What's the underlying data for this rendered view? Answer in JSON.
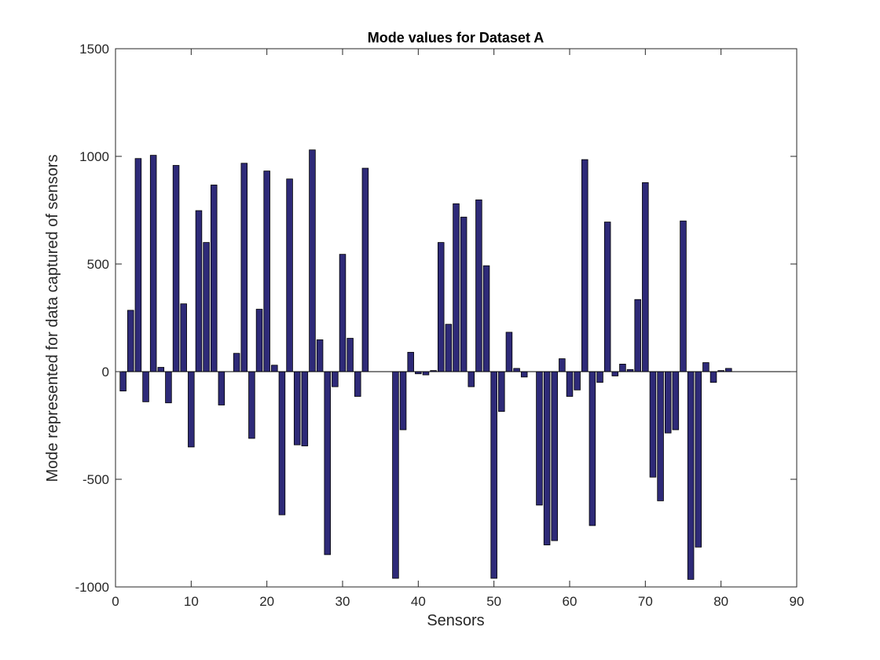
{
  "chart_data": {
    "type": "bar",
    "title": "Mode values for Dataset A",
    "xlabel": "Sensors",
    "ylabel": "Mode represented for data captured of sensors",
    "xlim": [
      0,
      90
    ],
    "ylim": [
      -1000,
      1500
    ],
    "xticks": [
      0,
      10,
      20,
      30,
      40,
      50,
      60,
      70,
      80,
      90
    ],
    "yticks": [
      -1000,
      -500,
      0,
      500,
      1000,
      1500
    ],
    "grid": false,
    "bar_color": "#2e2a78",
    "bar_edge_color": "#000000",
    "x": [
      1,
      2,
      3,
      4,
      5,
      6,
      7,
      8,
      9,
      10,
      11,
      12,
      13,
      14,
      15,
      16,
      17,
      18,
      19,
      20,
      21,
      22,
      23,
      24,
      25,
      26,
      27,
      28,
      29,
      30,
      31,
      32,
      33,
      34,
      35,
      36,
      37,
      38,
      39,
      40,
      41,
      42,
      43,
      44,
      45,
      46,
      47,
      48,
      49,
      50,
      51,
      52,
      53,
      54,
      55,
      56,
      57,
      58,
      59,
      60,
      61,
      62,
      63,
      64,
      65,
      66,
      67,
      68,
      69,
      70,
      71,
      72,
      73,
      74,
      75,
      76,
      77,
      78,
      79,
      80,
      81
    ],
    "values": [
      -90,
      285,
      990,
      -140,
      1005,
      20,
      -145,
      958,
      315,
      -350,
      748,
      600,
      867,
      -155,
      0,
      85,
      968,
      -310,
      290,
      932,
      30,
      -665,
      895,
      -340,
      -345,
      1030,
      148,
      -850,
      -70,
      545,
      155,
      -115,
      945,
      0,
      0,
      0,
      -960,
      -270,
      90,
      -10,
      -15,
      5,
      600,
      220,
      780,
      718,
      -70,
      798,
      492,
      -960,
      -185,
      183,
      15,
      -25,
      0,
      -620,
      -805,
      -785,
      60,
      -115,
      -85,
      985,
      -715,
      -50,
      695,
      -20,
      35,
      10,
      335,
      878,
      -490,
      -600,
      -285,
      -270,
      700,
      -965,
      -815,
      42,
      -50,
      5,
      15
    ]
  }
}
